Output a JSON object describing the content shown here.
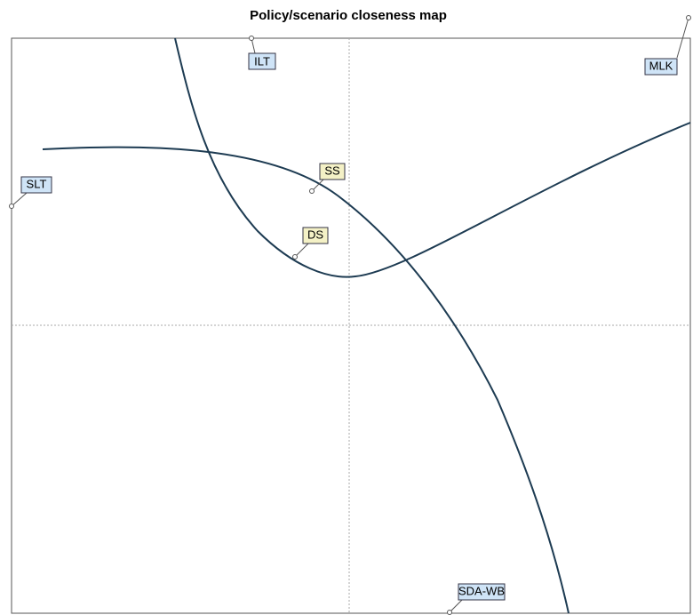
{
  "title": "Policy/scenario closeness map",
  "nodes": [
    {
      "label": "ILT"
    },
    {
      "label": "MLK"
    },
    {
      "label": "SLT"
    },
    {
      "label": "SS"
    },
    {
      "label": "DS"
    },
    {
      "label": "SDA-WB"
    }
  ]
}
